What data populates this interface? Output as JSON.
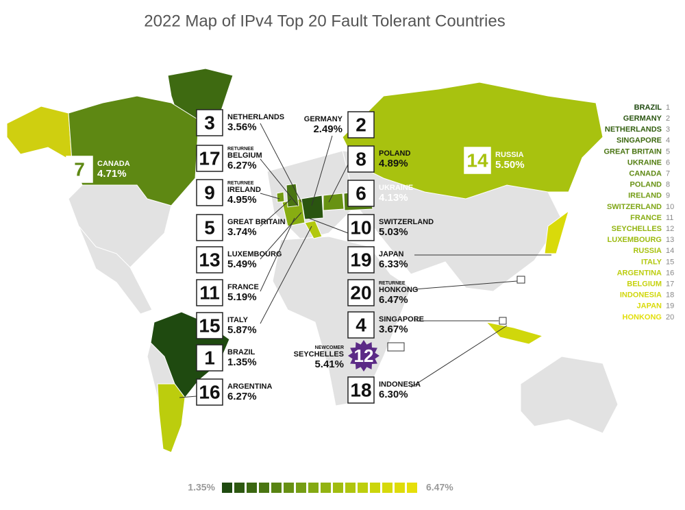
{
  "header": {
    "title": "2022 Map of IPv4 Top 20 Fault Tolerant Countries"
  },
  "countries": [
    {
      "rank": 1,
      "name": "BRAZIL",
      "value": "1.35%",
      "color": "#1f4a10"
    },
    {
      "rank": 2,
      "name": "GERMANY",
      "value": "2.49%",
      "color": "#2a5510"
    },
    {
      "rank": 3,
      "name": "NETHERLANDS",
      "value": "3.56%",
      "color": "#346011"
    },
    {
      "rank": 4,
      "name": "SINGAPORE",
      "value": "3.67%",
      "color": "#3e6a11"
    },
    {
      "rank": 5,
      "name": "GREAT BRITAIN",
      "value": "3.74%",
      "color": "#497412"
    },
    {
      "rank": 6,
      "name": "UKRAINE",
      "value": "4.13%",
      "color": "#537e12"
    },
    {
      "rank": 7,
      "name": "CANADA",
      "value": "4.71%",
      "color": "#5e8813"
    },
    {
      "rank": 8,
      "name": "POLAND",
      "value": "4.89%",
      "color": "#689213"
    },
    {
      "rank": 9,
      "name": "IRELAND",
      "value": "4.95%",
      "tag": "RETURNEE",
      "color": "#739c14"
    },
    {
      "rank": 10,
      "name": "SWITZERLAND",
      "value": "5.03%",
      "color": "#7ea514"
    },
    {
      "rank": 11,
      "name": "FRANCE",
      "value": "5.19%",
      "color": "#88ad12"
    },
    {
      "rank": 12,
      "name": "SEYCHELLES",
      "value": "5.41%",
      "tag": "NEWCOMER",
      "color": "#93b411"
    },
    {
      "rank": 13,
      "name": "LUXEMBOURG",
      "value": "5.49%",
      "color": "#9dbb10"
    },
    {
      "rank": 14,
      "name": "RUSSIA",
      "value": "5.50%",
      "color": "#a8c20f"
    },
    {
      "rank": 15,
      "name": "ITALY",
      "value": "5.87%",
      "color": "#b2c80e"
    },
    {
      "rank": 16,
      "name": "ARGENTINA",
      "value": "6.27%",
      "color": "#bccd0d"
    },
    {
      "rank": 17,
      "name": "BELGIUM",
      "value": "6.27%",
      "tag": "RETURNEE",
      "color": "#c6d20c"
    },
    {
      "rank": 18,
      "name": "INDONESIA",
      "value": "6.30%",
      "color": "#d0d70b"
    },
    {
      "rank": 19,
      "name": "JAPAN",
      "value": "6.33%",
      "color": "#d9da0a"
    },
    {
      "rank": 20,
      "name": "HONKONG",
      "value": "6.47%",
      "tag": "RETURNEE",
      "color": "#e2de0a"
    }
  ],
  "legend": [
    {
      "name": "BRAZIL",
      "rank": 1
    },
    {
      "name": "GERMANY",
      "rank": 2
    },
    {
      "name": "NETHERLANDS",
      "rank": 3
    },
    {
      "name": "SINGAPORE",
      "rank": 4
    },
    {
      "name": "GREAT BRITAIN",
      "rank": 5
    },
    {
      "name": "UKRAINE",
      "rank": 6
    },
    {
      "name": "CANADA",
      "rank": 7
    },
    {
      "name": "POLAND",
      "rank": 8
    },
    {
      "name": "IRELAND",
      "rank": 9
    },
    {
      "name": "SWITZERLAND",
      "rank": 10
    },
    {
      "name": "FRANCE",
      "rank": 11
    },
    {
      "name": "SEYCHELLES",
      "rank": 12
    },
    {
      "name": "LUXEMBOURG",
      "rank": 13
    },
    {
      "name": "RUSSIA",
      "rank": 14
    },
    {
      "name": "ITALY",
      "rank": 15
    },
    {
      "name": "ARGENTINA",
      "rank": 16
    },
    {
      "name": "BELGIUM",
      "rank": 17
    },
    {
      "name": "INDONESIA",
      "rank": 18
    },
    {
      "name": "JAPAN",
      "rank": 19
    },
    {
      "name": "HONKONG",
      "rank": 20
    }
  ],
  "scale": {
    "min_label": "1.35%",
    "max_label": "6.47%",
    "colors": [
      "#1f4a10",
      "#2d5810",
      "#3b6711",
      "#4a7512",
      "#588312",
      "#679013",
      "#759d14",
      "#84a913",
      "#92b311",
      "#a1bc10",
      "#afc50e",
      "#bdce0d",
      "#cbd50b",
      "#d6d90a",
      "#dedc0a",
      "#e6df0a"
    ]
  }
}
